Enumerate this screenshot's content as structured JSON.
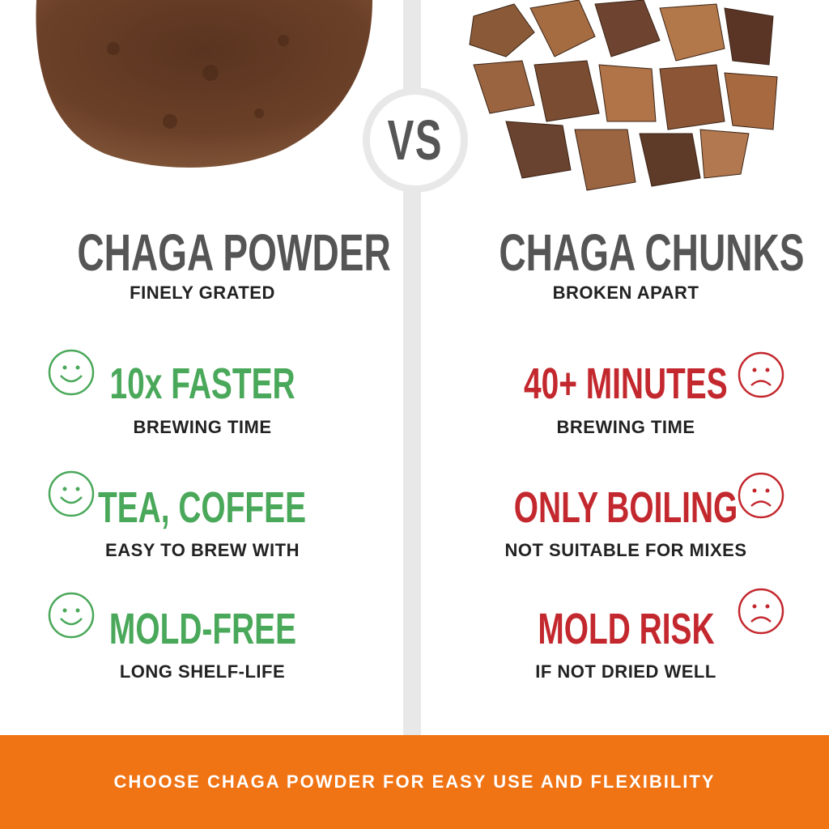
{
  "vs_label": "VS",
  "left": {
    "title": "CHAGA POWDER",
    "subtitle": "FINELY GRATED",
    "image": "chaga-powder-pile",
    "features": [
      {
        "icon": "smiley-face-icon",
        "heading": "10x FASTER",
        "detail": "BREWING TIME"
      },
      {
        "icon": "smiley-face-icon",
        "heading": "TEA, COFFEE",
        "detail": "EASY TO BREW WITH"
      },
      {
        "icon": "smiley-face-icon",
        "heading": "MOLD-FREE",
        "detail": "LONG SHELF-LIFE"
      }
    ]
  },
  "right": {
    "title": "CHAGA CHUNKS",
    "subtitle": "BROKEN APART",
    "image": "chaga-chunks-pile",
    "features": [
      {
        "icon": "sad-face-icon",
        "heading": "40+ MINUTES",
        "detail": "BREWING TIME"
      },
      {
        "icon": "sad-face-icon",
        "heading": "ONLY BOILING",
        "detail": "NOT SUITABLE FOR MIXES"
      },
      {
        "icon": "sad-face-icon",
        "heading": "MOLD RISK",
        "detail": "IF NOT DRIED WELL"
      }
    ]
  },
  "banner": {
    "text": "CHOOSE CHAGA POWDER FOR EASY USE AND FLEXIBILITY"
  },
  "colors": {
    "positive": "#4aa85a",
    "negative": "#c3282e",
    "banner": "#f07314",
    "title": "#555555",
    "divider": "#e8e8e8"
  }
}
